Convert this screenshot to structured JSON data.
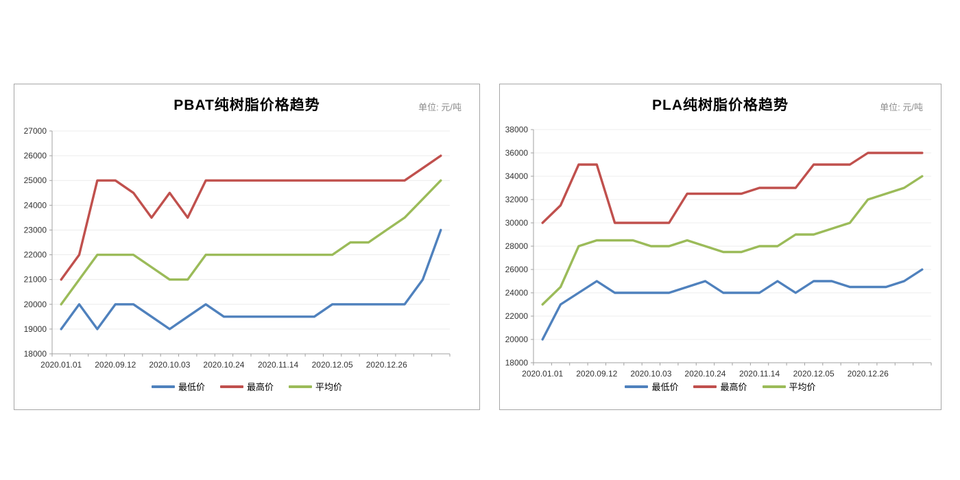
{
  "chart_data": [
    {
      "type": "line",
      "title": "PBAT纯树脂价格趋势",
      "unit_label": "单位: 元/吨",
      "x_tick_labels": [
        "2020.01.01",
        "2020.09.12",
        "2020.10.03",
        "2020.10.24",
        "2020.11.14",
        "2020.12.05",
        "2020.12.26"
      ],
      "x_label_point_interval": 3,
      "n_points": 22,
      "ylim": [
        18000,
        27000
      ],
      "y_step": 1000,
      "grid": true,
      "legend_position": "bottom",
      "colors": {
        "axis": "#a0a0a0",
        "gridline": "#ececec",
        "tick_label": "#333333"
      },
      "series": [
        {
          "key": "min",
          "name": "最低价",
          "color": "#4f81bd",
          "values": [
            19000,
            20000,
            19000,
            20000,
            20000,
            19500,
            19000,
            19500,
            20000,
            19500,
            19500,
            19500,
            19500,
            19500,
            19500,
            20000,
            20000,
            20000,
            20000,
            20000,
            21000,
            23000
          ]
        },
        {
          "key": "max",
          "name": "最高价",
          "color": "#c0504d",
          "values": [
            21000,
            22000,
            25000,
            25000,
            24500,
            23500,
            24500,
            23500,
            25000,
            25000,
            25000,
            25000,
            25000,
            25000,
            25000,
            25000,
            25000,
            25000,
            25000,
            25000,
            25500,
            26000
          ]
        },
        {
          "key": "avg",
          "name": "平均价",
          "color": "#9bbb59",
          "values": [
            20000,
            21000,
            22000,
            22000,
            22000,
            21500,
            21000,
            21000,
            22000,
            22000,
            22000,
            22000,
            22000,
            22000,
            22000,
            22000,
            22500,
            22500,
            23000,
            23500,
            24250,
            25000
          ]
        }
      ]
    },
    {
      "type": "line",
      "title": "PLA纯树脂价格趋势",
      "unit_label": "单位: 元/吨",
      "x_tick_labels": [
        "2020.01.01",
        "2020.09.12",
        "2020.10.03",
        "2020.10.24",
        "2020.11.14",
        "2020.12.05",
        "2020.12.26"
      ],
      "x_label_point_interval": 3,
      "n_points": 22,
      "ylim": [
        18000,
        38000
      ],
      "y_step": 2000,
      "grid": true,
      "legend_position": "bottom",
      "colors": {
        "axis": "#a0a0a0",
        "gridline": "#ececec",
        "tick_label": "#333333"
      },
      "series": [
        {
          "key": "min",
          "name": "最低价",
          "color": "#4f81bd",
          "values": [
            20000,
            23000,
            24000,
            25000,
            24000,
            24000,
            24000,
            24000,
            24500,
            25000,
            24000,
            24000,
            24000,
            25000,
            24000,
            25000,
            25000,
            24500,
            24500,
            24500,
            25000,
            26000
          ]
        },
        {
          "key": "max",
          "name": "最高价",
          "color": "#c0504d",
          "values": [
            30000,
            31500,
            35000,
            35000,
            30000,
            30000,
            30000,
            30000,
            32500,
            32500,
            32500,
            32500,
            33000,
            33000,
            33000,
            35000,
            35000,
            35000,
            36000,
            36000,
            36000,
            36000
          ]
        },
        {
          "key": "avg",
          "name": "平均价",
          "color": "#9bbb59",
          "values": [
            23000,
            24500,
            28000,
            28500,
            28500,
            28500,
            28000,
            28000,
            28500,
            28000,
            27500,
            27500,
            28000,
            28000,
            29000,
            29000,
            29500,
            30000,
            32000,
            32500,
            33000,
            34000
          ]
        }
      ]
    }
  ]
}
